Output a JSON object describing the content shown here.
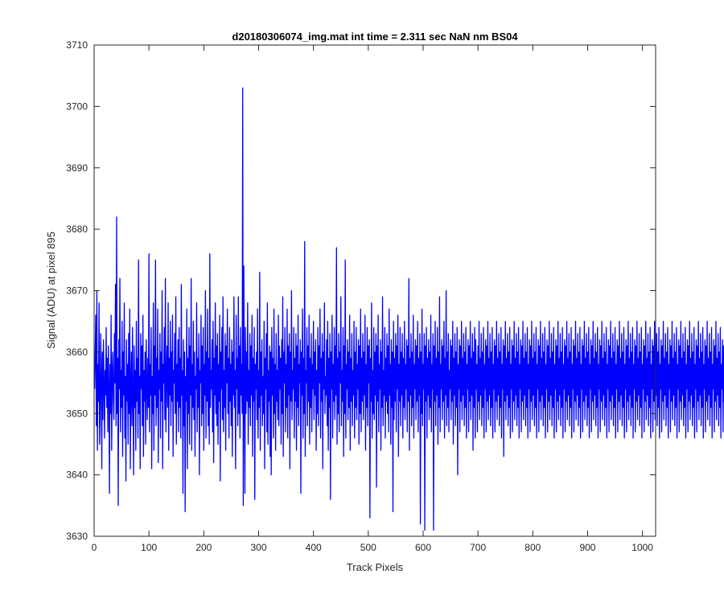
{
  "chart_data": {
    "type": "line",
    "title": "d20180306074_img.mat int time = 2.311 sec  NaN nm BS04",
    "xlabel": "Track Pixels",
    "ylabel": "Signal (ADU) at pixel 895",
    "xlim": [
      0,
      1024
    ],
    "ylim": [
      3630,
      3710
    ],
    "xticks": [
      0,
      100,
      200,
      300,
      400,
      500,
      600,
      700,
      800,
      900,
      1000
    ],
    "yticks": [
      3630,
      3640,
      3650,
      3660,
      3670,
      3680,
      3690,
      3700,
      3710
    ],
    "grid": false,
    "legend": "none",
    "series": [
      {
        "color": "#0000ff",
        "x_start": 1,
        "x_step": 1,
        "y": [
          3654,
          3660,
          3666,
          3648,
          3670,
          3644,
          3658,
          3652,
          3668,
          3645,
          3650,
          3663,
          3656,
          3641,
          3660,
          3649,
          3662,
          3655,
          3646,
          3657,
          3653,
          3664,
          3651,
          3659,
          3647,
          3661,
          3654,
          3637,
          3658,
          3650,
          3666,
          3644,
          3656,
          3660,
          3652,
          3649,
          3663,
          3655,
          3671,
          3648,
          3682,
          3650,
          3659,
          3635,
          3662,
          3654,
          3672,
          3647,
          3657,
          3651,
          3665,
          3643,
          3660,
          3653,
          3668,
          3646,
          3656,
          3639,
          3662,
          3652,
          3658,
          3645,
          3663,
          3650,
          3667,
          3641,
          3655,
          3660,
          3648,
          3664,
          3653,
          3640,
          3661,
          3651,
          3657,
          3644,
          3665,
          3652,
          3659,
          3646,
          3675,
          3650,
          3656,
          3641,
          3663,
          3654,
          3661,
          3648,
          3666,
          3643,
          3657,
          3652,
          3660,
          3645,
          3662,
          3655,
          3649,
          3659,
          3651,
          3676,
          3647,
          3658,
          3653,
          3664,
          3641,
          3656,
          3650,
          3668,
          3644,
          3661,
          3653,
          3675,
          3648,
          3659,
          3651,
          3667,
          3642,
          3657,
          3654,
          3663,
          3646,
          3660,
          3652,
          3670,
          3641,
          3658,
          3655,
          3664,
          3649,
          3672,
          3647,
          3656,
          3661,
          3651,
          3668,
          3644,
          3659,
          3653,
          3665,
          3648,
          3660,
          3652,
          3666,
          3643,
          3657,
          3655,
          3663,
          3650,
          3669,
          3645,
          3658,
          3652,
          3662,
          3647,
          3664,
          3651,
          3659,
          3646,
          3671,
          3653,
          3657,
          3637,
          3662,
          3648,
          3660,
          3634,
          3656,
          3652,
          3667,
          3641,
          3659,
          3650,
          3664,
          3645,
          3661,
          3653,
          3672,
          3644,
          3658,
          3651,
          3665,
          3649,
          3660,
          3643,
          3656,
          3654,
          3668,
          3647,
          3659,
          3651,
          3663,
          3640,
          3657,
          3655,
          3666,
          3648,
          3661,
          3650,
          3664,
          3644,
          3658,
          3653,
          3670,
          3646,
          3660,
          3652,
          3667,
          3648,
          3659,
          3645,
          3676,
          3651,
          3657,
          3654,
          3662,
          3647,
          3665,
          3642,
          3659,
          3653,
          3668,
          3650,
          3661,
          3648,
          3663,
          3645,
          3658,
          3652,
          3666,
          3639,
          3660,
          3654,
          3664,
          3649,
          3669,
          3647,
          3657,
          3651,
          3663,
          3644,
          3661,
          3655,
          3667,
          3650,
          3659,
          3646,
          3664,
          3652,
          3658,
          3648,
          3662,
          3643,
          3660,
          3653,
          3669,
          3651,
          3657,
          3641,
          3666,
          3654,
          3659,
          3648,
          3669,
          3650,
          3661,
          3646,
          3664,
          3653,
          3658,
          3650,
          3703,
          3635,
          3674,
          3655,
          3637,
          3664,
          3650,
          3660,
          3652,
          3668,
          3645,
          3657,
          3651,
          3663,
          3648,
          3661,
          3653,
          3666,
          3643,
          3659,
          3652,
          3664,
          3636,
          3658,
          3654,
          3660,
          3649,
          3667,
          3646,
          3657,
          3651,
          3673,
          3644,
          3660,
          3653,
          3662,
          3648,
          3656,
          3650,
          3665,
          3641,
          3659,
          3654,
          3663,
          3647,
          3668,
          3645,
          3657,
          3652,
          3661,
          3643,
          3660,
          3640,
          3664,
          3653,
          3659,
          3646,
          3667,
          3650,
          3658,
          3644,
          3663,
          3652,
          3657,
          3649,
          3666,
          3648,
          3661,
          3654,
          3659,
          3645,
          3662,
          3650,
          3669,
          3643,
          3660,
          3655,
          3664,
          3647,
          3658,
          3651,
          3667,
          3646,
          3661,
          3653,
          3663,
          3641,
          3660,
          3652,
          3670,
          3649,
          3657,
          3654,
          3664,
          3646,
          3659,
          3652,
          3663,
          3644,
          3661,
          3651,
          3666,
          3648,
          3658,
          3655,
          3662,
          3637,
          3660,
          3653,
          3667,
          3646,
          3659,
          3650,
          3678,
          3643,
          3657,
          3655,
          3664,
          3648,
          3661,
          3652,
          3666,
          3645,
          3659,
          3651,
          3663,
          3647,
          3658,
          3654,
          3665,
          3649,
          3660,
          3653,
          3662,
          3644,
          3657,
          3650,
          3664,
          3648,
          3661,
          3655,
          3667,
          3646,
          3659,
          3652,
          3663,
          3641,
          3660,
          3654,
          3668,
          3650,
          3656,
          3653,
          3662,
          3648,
          3665,
          3644,
          3659,
          3651,
          3663,
          3636,
          3660,
          3654,
          3666,
          3646,
          3658,
          3652,
          3664,
          3649,
          3661,
          3653,
          3677,
          3645,
          3659,
          3650,
          3663,
          3647,
          3660,
          3655,
          3669,
          3648,
          3657,
          3652,
          3664,
          3643,
          3661,
          3650,
          3675,
          3646,
          3658,
          3654,
          3662,
          3649,
          3660,
          3651,
          3666,
          3644,
          3659,
          3652,
          3663,
          3648,
          3657,
          3653,
          3665,
          3646,
          3660,
          3651,
          3664,
          3649,
          3658,
          3654,
          3662,
          3645,
          3661,
          3650,
          3667,
          3647,
          3659,
          3652,
          3663,
          3649,
          3660,
          3653,
          3666,
          3644,
          3658,
          3651,
          3664,
          3648,
          3661,
          3655,
          3662,
          3633,
          3659,
          3652,
          3668,
          3646,
          3657,
          3650,
          3664,
          3649,
          3660,
          3653,
          3663,
          3638,
          3661,
          3652,
          3666,
          3647,
          3658,
          3654,
          3662,
          3644,
          3660,
          3651,
          3669,
          3648,
          3657,
          3653,
          3664,
          3646,
          3659,
          3652,
          3663,
          3650,
          3661,
          3647,
          3667,
          3653,
          3658,
          3645,
          3662,
          3651,
          3660,
          3634,
          3665,
          3649,
          3659,
          3652,
          3663,
          3647,
          3661,
          3654,
          3666,
          3643,
          3658,
          3652,
          3664,
          3648,
          3660,
          3653,
          3663,
          3646,
          3659,
          3651,
          3665,
          3649,
          3658,
          3654,
          3662,
          3647,
          3661,
          3652,
          3672,
          3644,
          3659,
          3653,
          3663,
          3648,
          3660,
          3651,
          3666,
          3646,
          3658,
          3654,
          3662,
          3649,
          3661,
          3652,
          3665,
          3647,
          3659,
          3653,
          3663,
          3632,
          3660,
          3650,
          3667,
          3648,
          3658,
          3654,
          3663,
          3631,
          3661,
          3652,
          3664,
          3646,
          3659,
          3653,
          3662,
          3649,
          3660,
          3651,
          3666,
          3647,
          3658,
          3654,
          3663,
          3631,
          3661,
          3652,
          3665,
          3648,
          3659,
          3653,
          3664,
          3645,
          3660,
          3651,
          3669,
          3647,
          3658,
          3654,
          3662,
          3649,
          3661,
          3652,
          3665,
          3646,
          3659,
          3653,
          3670,
          3648,
          3660,
          3651,
          3663,
          3647,
          3657,
          3654,
          3662,
          3649,
          3661,
          3652,
          3665,
          3645,
          3659,
          3653,
          3663,
          3648,
          3660,
          3651,
          3664,
          3640,
          3658,
          3654,
          3662,
          3647,
          3661,
          3652,
          3665,
          3649,
          3659,
          3653,
          3663,
          3648,
          3660,
          3651,
          3664,
          3646,
          3658,
          3654,
          3662,
          3647,
          3661,
          3652,
          3665,
          3649,
          3659,
          3653,
          3663,
          3644,
          3660,
          3651,
          3664,
          3646,
          3662,
          3654,
          3658,
          3647,
          3661,
          3652,
          3665,
          3649,
          3659,
          3653,
          3663,
          3648,
          3660,
          3651,
          3664,
          3646,
          3658,
          3654,
          3662,
          3647,
          3661,
          3652,
          3665,
          3649,
          3659,
          3653,
          3663,
          3648,
          3660,
          3651,
          3664,
          3646,
          3658,
          3654,
          3662,
          3647,
          3661,
          3652,
          3665,
          3649,
          3659,
          3653,
          3663,
          3648,
          3660,
          3651,
          3664,
          3646,
          3658,
          3654,
          3662,
          3643,
          3661,
          3652,
          3665,
          3649,
          3659,
          3653,
          3663,
          3648,
          3660,
          3651,
          3664,
          3646,
          3658,
          3654,
          3662,
          3647,
          3661,
          3652,
          3665,
          3649,
          3659,
          3653,
          3663,
          3648,
          3660,
          3651,
          3664,
          3646,
          3658,
          3654,
          3662,
          3647,
          3661,
          3652,
          3665,
          3649,
          3659,
          3653,
          3663,
          3648,
          3660,
          3651,
          3664,
          3646,
          3658,
          3654,
          3662,
          3647,
          3661,
          3652,
          3665,
          3649,
          3659,
          3653,
          3663,
          3648,
          3660,
          3651,
          3664,
          3646,
          3658,
          3654,
          3662,
          3647,
          3661,
          3652,
          3665,
          3649,
          3659,
          3653,
          3663,
          3648,
          3660,
          3651,
          3664,
          3646,
          3658,
          3654,
          3662,
          3647,
          3661,
          3652,
          3665,
          3649,
          3659,
          3653,
          3663,
          3648,
          3660,
          3651,
          3664,
          3646,
          3658,
          3654,
          3662,
          3647,
          3661,
          3652,
          3665,
          3649,
          3659,
          3653,
          3663,
          3648,
          3660,
          3651,
          3664,
          3646,
          3658,
          3654,
          3662,
          3647,
          3661,
          3652,
          3665,
          3649,
          3659,
          3653,
          3663,
          3648,
          3660,
          3651,
          3664,
          3646,
          3658,
          3654,
          3662,
          3647,
          3661,
          3652,
          3665,
          3649,
          3659,
          3653,
          3663,
          3648,
          3660,
          3651,
          3664,
          3646,
          3658,
          3654,
          3662,
          3647,
          3661,
          3652,
          3665,
          3649,
          3659,
          3653,
          3663,
          3648,
          3660,
          3651,
          3664,
          3646,
          3658,
          3654,
          3662,
          3647,
          3661,
          3652,
          3665,
          3649,
          3659,
          3653,
          3663,
          3648,
          3660,
          3651,
          3664,
          3646,
          3658,
          3654,
          3662,
          3647,
          3661,
          3652,
          3665,
          3649,
          3659,
          3653,
          3663,
          3648,
          3660,
          3651,
          3664,
          3646,
          3658,
          3654,
          3662,
          3647,
          3661,
          3652,
          3665,
          3649,
          3659,
          3653,
          3663,
          3648,
          3660,
          3651,
          3664,
          3646,
          3658,
          3654,
          3662,
          3647,
          3661,
          3652,
          3665,
          3649,
          3659,
          3653,
          3663,
          3648,
          3660,
          3651,
          3664,
          3646,
          3658,
          3654,
          3662,
          3647,
          3661,
          3652,
          3665,
          3649,
          3659,
          3653,
          3663,
          3648,
          3660,
          3651,
          3664,
          3646,
          3658,
          3654,
          3662,
          3647,
          3661,
          3652,
          3665,
          3649,
          3659,
          3653,
          3663,
          3648,
          3660,
          3651,
          3664,
          3646,
          3658,
          3654,
          3662,
          3647,
          3661,
          3652,
          3665,
          3649,
          3659,
          3653,
          3663,
          3648,
          3660,
          3651,
          3664,
          3646,
          3658,
          3654,
          3662,
          3647,
          3661,
          3652,
          3665,
          3649,
          3659,
          3653,
          3663,
          3648,
          3660,
          3651,
          3664,
          3646,
          3658,
          3654,
          3662,
          3647,
          3661,
          3652,
          3665,
          3649,
          3659,
          3653,
          3663,
          3648,
          3660,
          3651,
          3664,
          3646,
          3658,
          3654,
          3662,
          3647,
          3661,
          3652,
          3665,
          3649,
          3659,
          3653,
          3663,
          3648,
          3660,
          3651,
          3664,
          3646,
          3658,
          3654,
          3662,
          3647,
          3661,
          3652,
          3665,
          3649,
          3659,
          3653,
          3663,
          3648,
          3660,
          3651,
          3664,
          3646,
          3658,
          3654,
          3662,
          3647,
          3661,
          3652,
          3665,
          3649,
          3659,
          3653,
          3663,
          3648,
          3660,
          3651,
          3664,
          3646,
          3658,
          3654,
          3662,
          3647,
          3661,
          3652,
          3665,
          3649,
          3659,
          3653,
          3663,
          3648,
          3660,
          3651,
          3664,
          3646,
          3658,
          3654,
          3662,
          3647,
          3661,
          3652,
          3665,
          3649,
          3659,
          3653,
          3663,
          3648,
          3660,
          3651,
          3664,
          3646,
          3658,
          3654,
          3662,
          3647,
          3661,
          3652,
          3665,
          3649,
          3659,
          3653,
          3663,
          3648,
          3660,
          3651,
          3664,
          3646,
          3658,
          3654,
          3662,
          3647,
          3661,
          3652,
          3665,
          3649,
          3659,
          3653,
          3663,
          3648,
          3660,
          3651,
          3664,
          3646,
          3658,
          3654,
          3662,
          3647,
          3661,
          3652,
          3665,
          3649,
          3659,
          3653,
          3663,
          3648,
          3660,
          3651,
          3664,
          3646,
          3658,
          3654,
          3662,
          3647,
          3661,
          3652,
          3665,
          3649,
          3659,
          3653,
          3663,
          3648,
          3660,
          3651,
          3664,
          3646,
          3658,
          3654,
          3662,
          3647,
          3661,
          3652,
          3665,
          3649,
          3659,
          3653,
          3663
        ]
      }
    ]
  }
}
